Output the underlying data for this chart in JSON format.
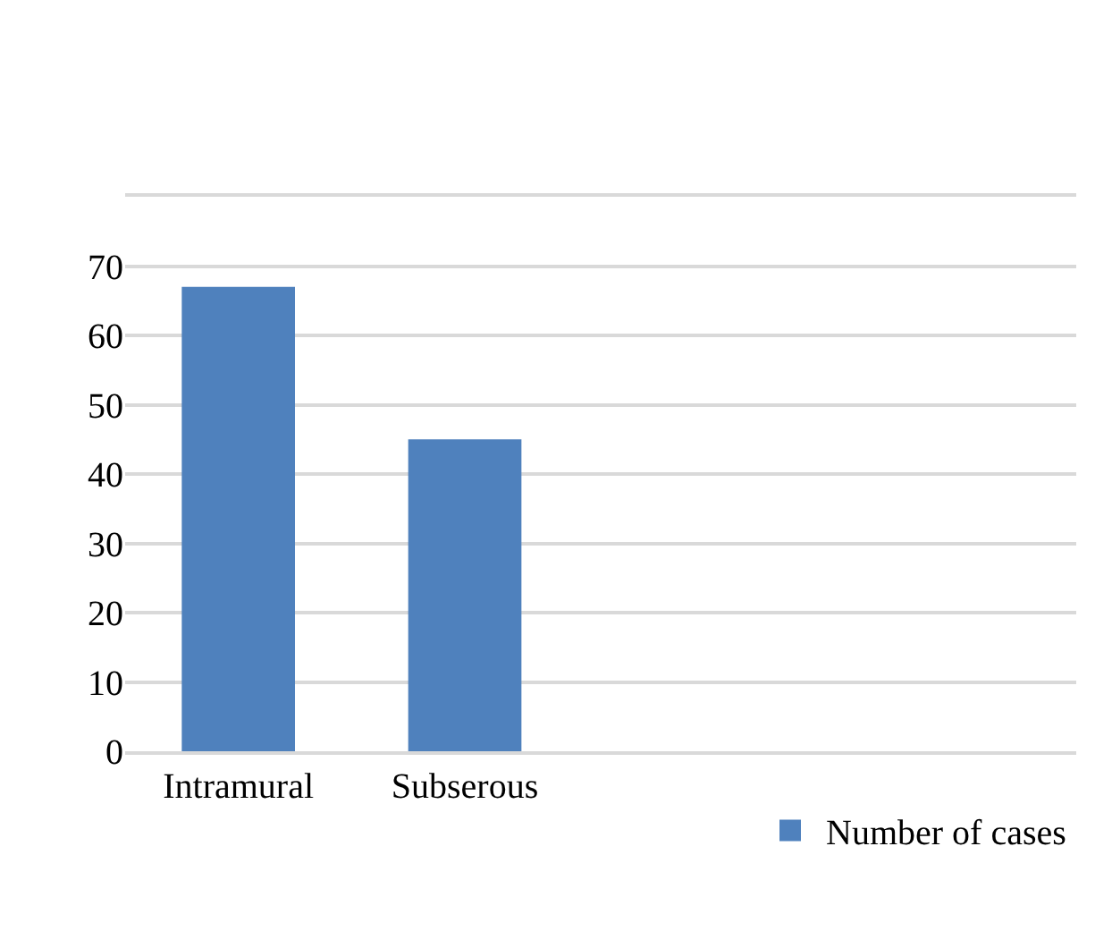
{
  "chart_data": {
    "type": "bar",
    "categories": [
      "Intramural",
      "Subserous"
    ],
    "series": [
      {
        "name": "Number of cases",
        "color": "#4f81bd",
        "values": [
          67,
          45
        ]
      }
    ],
    "ylim": [
      0,
      80
    ],
    "yticks": [
      0,
      10,
      20,
      30,
      40,
      50,
      60,
      70
    ],
    "grid": "y",
    "legend": "bottom right"
  }
}
